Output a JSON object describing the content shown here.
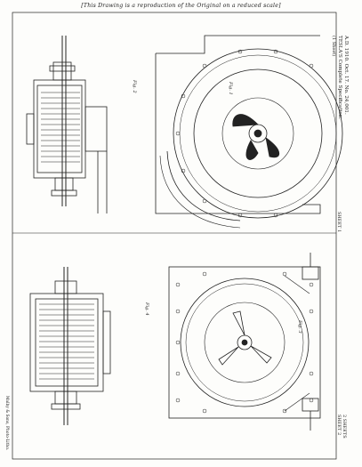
{
  "caption": "[This Drawing is a reproduction of the Original on a reduced scale]",
  "header": {
    "line1": "A.D. 1910. Oct. 17. No. 24,001.",
    "line2": "TESLA'S Complete Specification.",
    "line3": "(1 Sheet)",
    "sheet_top": "SHEET 1",
    "sheet_bottom": "SHEET 2",
    "sheet_bottom_2": "2 SHEETS"
  },
  "figures": {
    "fig1": "Fig. 1",
    "fig2": "Fig. 2",
    "fig3": "Fig. 3",
    "fig4": "Fig. 4"
  },
  "imprint": "Malby & Sons, Photo-Litho."
}
